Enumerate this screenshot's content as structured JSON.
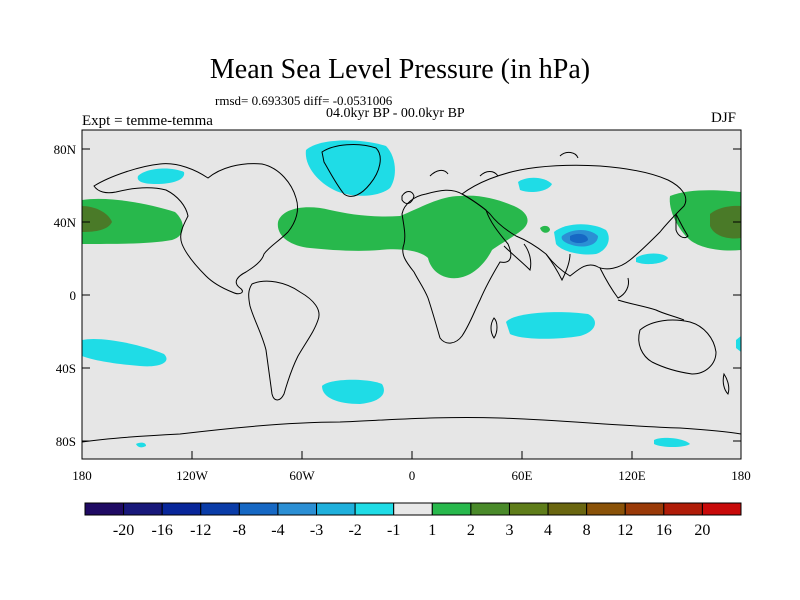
{
  "title": "Mean Sea Level Pressure (in hPa)",
  "stats": "rmsd= 0.693305 diff= -0.0531006",
  "period": "04.0kyr BP - 00.0kyr BP",
  "experiment": "Expt = temme-temma",
  "season": "DJF",
  "map": {
    "lat_ticks": [
      "80N",
      "40N",
      "0",
      "40S",
      "80S"
    ],
    "lon_ticks": [
      "180",
      "120W",
      "60W",
      "0",
      "60E",
      "120E",
      "180"
    ],
    "background_color": "#e6e6e6"
  },
  "colorbar": {
    "colors": [
      "#1f0a63",
      "#18187a",
      "#08269a",
      "#0a3ca8",
      "#1668c4",
      "#2b8fd4",
      "#1fb0dc",
      "#1fdce6",
      "#e8e8e8",
      "#28b84c",
      "#4a8a2a",
      "#5f7d1a",
      "#6a6610",
      "#8a5208",
      "#9a3a08",
      "#b01c08",
      "#c80a0a"
    ],
    "labels": [
      "-20",
      "-16",
      "-12",
      "-8",
      "-4",
      "-3",
      "-2",
      "-1",
      "1",
      "2",
      "3",
      "4",
      "8",
      "12",
      "16",
      "20"
    ]
  }
}
